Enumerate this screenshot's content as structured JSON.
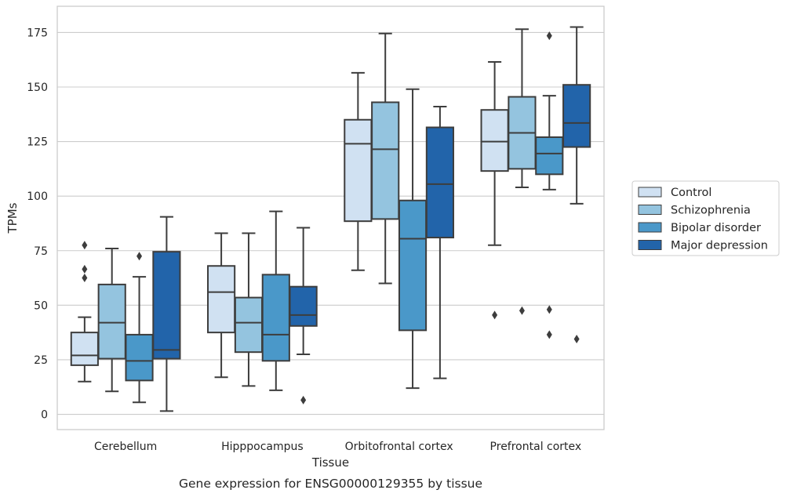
{
  "chart_data": {
    "type": "box",
    "title": "",
    "caption": "Gene expression for ENSG00000129355 by tissue",
    "xlabel": "Tissue",
    "ylabel": "TPMs",
    "ylim": [
      -7,
      187
    ],
    "yticks": [
      0,
      25,
      50,
      75,
      100,
      125,
      150,
      175
    ],
    "grid": true,
    "legend_position": "right",
    "categories": [
      "Cerebellum",
      "Hipppocampus",
      "Orbitofrontal cortex",
      "Prefrontal cortex"
    ],
    "series": [
      {
        "name": "Control",
        "color": "#d0e1f2",
        "boxes": [
          {
            "whislo": 15,
            "q1": 22.5,
            "med": 27,
            "q3": 37.5,
            "whishi": 44.5,
            "fliers": [
              62.5,
              66.5,
              77.5
            ]
          },
          {
            "whislo": 17,
            "q1": 37.5,
            "med": 56,
            "q3": 68,
            "whishi": 83,
            "fliers": []
          },
          {
            "whislo": 66,
            "q1": 88.5,
            "med": 124,
            "q3": 135,
            "whishi": 156.5,
            "fliers": []
          },
          {
            "whislo": 77.5,
            "q1": 111.5,
            "med": 125,
            "q3": 139.5,
            "whishi": 161.5,
            "fliers": [
              45.5
            ]
          }
        ]
      },
      {
        "name": "Schizophrenia",
        "color": "#94c4df",
        "boxes": [
          {
            "whislo": 10.5,
            "q1": 25.5,
            "med": 42,
            "q3": 59.5,
            "whishi": 76,
            "fliers": []
          },
          {
            "whislo": 13,
            "q1": 28.5,
            "med": 42,
            "q3": 53.5,
            "whishi": 83,
            "fliers": []
          },
          {
            "whislo": 60,
            "q1": 89.5,
            "med": 121.5,
            "q3": 143,
            "whishi": 174.5,
            "fliers": []
          },
          {
            "whislo": 104,
            "q1": 112.5,
            "med": 129,
            "q3": 145.5,
            "whishi": 176.5,
            "fliers": [
              47.5
            ]
          }
        ]
      },
      {
        "name": "Bipolar disorder",
        "color": "#4a98c9",
        "boxes": [
          {
            "whislo": 5.5,
            "q1": 15.5,
            "med": 24.5,
            "q3": 36.5,
            "whishi": 63,
            "fliers": [
              72.5
            ]
          },
          {
            "whislo": 11,
            "q1": 24.5,
            "med": 36.5,
            "q3": 64,
            "whishi": 93,
            "fliers": []
          },
          {
            "whislo": 12,
            "q1": 38.5,
            "med": 80.5,
            "q3": 98,
            "whishi": 149,
            "fliers": []
          },
          {
            "whislo": 103,
            "q1": 110,
            "med": 119.5,
            "q3": 127,
            "whishi": 146,
            "fliers": [
              36.5,
              48,
              173.5
            ]
          }
        ]
      },
      {
        "name": "Major depression",
        "color": "#2264aa",
        "boxes": [
          {
            "whislo": 1.5,
            "q1": 25.5,
            "med": 29.5,
            "q3": 74.5,
            "whishi": 90.5,
            "fliers": []
          },
          {
            "whislo": 27.5,
            "q1": 40.5,
            "med": 45.5,
            "q3": 58.5,
            "whishi": 85.5,
            "fliers": [
              6.5
            ]
          },
          {
            "whislo": 16.5,
            "q1": 81,
            "med": 105.5,
            "q3": 131.5,
            "whishi": 141,
            "fliers": []
          },
          {
            "whislo": 96.5,
            "q1": 122.5,
            "med": 133.5,
            "q3": 151,
            "whishi": 177.5,
            "fliers": [
              34.5
            ]
          }
        ]
      }
    ]
  }
}
